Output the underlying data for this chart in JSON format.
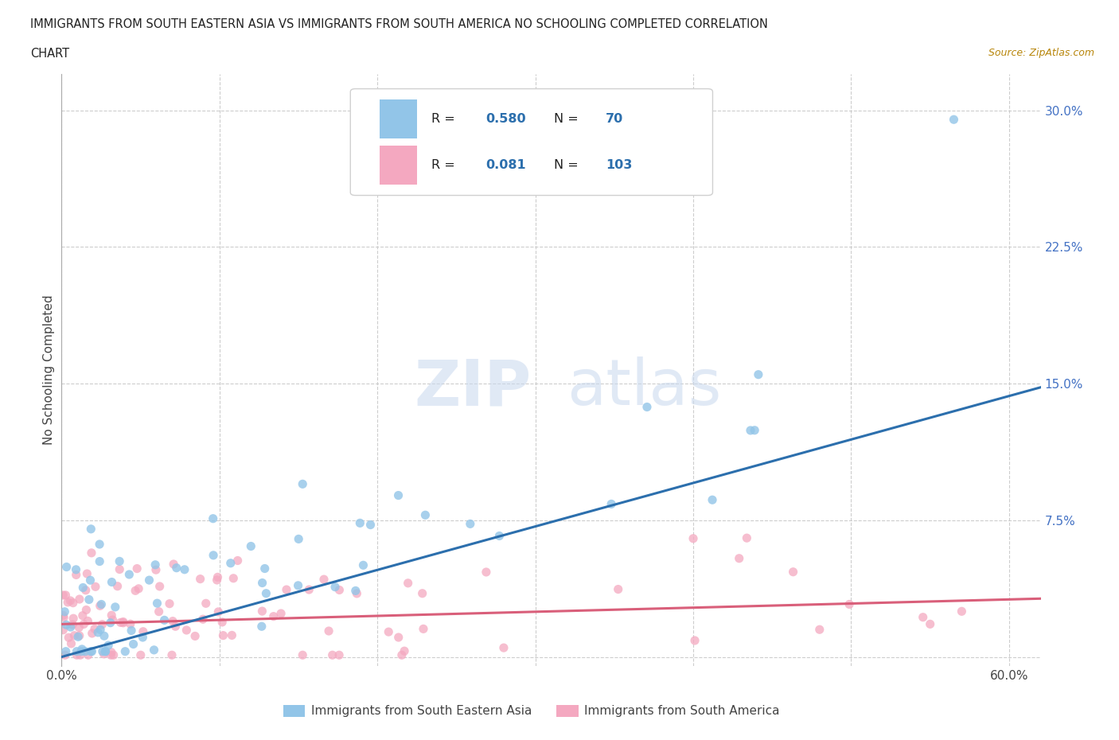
{
  "title_line1": "IMMIGRANTS FROM SOUTH EASTERN ASIA VS IMMIGRANTS FROM SOUTH AMERICA NO SCHOOLING COMPLETED CORRELATION",
  "title_line2": "CHART",
  "source": "Source: ZipAtlas.com",
  "ylabel": "No Schooling Completed",
  "xlim": [
    0.0,
    0.62
  ],
  "ylim": [
    -0.005,
    0.32
  ],
  "xticks": [
    0.0,
    0.1,
    0.2,
    0.3,
    0.4,
    0.5,
    0.6
  ],
  "xticklabels": [
    "0.0%",
    "",
    "",
    "",
    "",
    "",
    "60.0%"
  ],
  "yticks": [
    0.0,
    0.075,
    0.15,
    0.225,
    0.3
  ],
  "yticklabels": [
    "",
    "7.5%",
    "15.0%",
    "22.5%",
    "30.0%"
  ],
  "legend_blue_label": "Immigrants from South Eastern Asia",
  "legend_pink_label": "Immigrants from South America",
  "R_blue": 0.58,
  "N_blue": 70,
  "R_pink": 0.081,
  "N_pink": 103,
  "blue_color": "#92c5e8",
  "pink_color": "#f4a8c0",
  "blue_line_color": "#2c6fad",
  "pink_line_color": "#d95f7a",
  "background_color": "#ffffff",
  "grid_color": "#c8c8c8",
  "blue_line_x0": 0.0,
  "blue_line_y0": 0.0,
  "blue_line_x1": 0.62,
  "blue_line_y1": 0.148,
  "pink_line_x0": 0.0,
  "pink_line_y0": 0.018,
  "pink_line_x1": 0.62,
  "pink_line_y1": 0.032
}
